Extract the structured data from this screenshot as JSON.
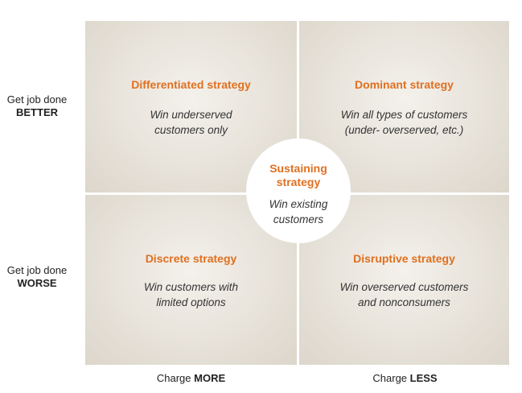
{
  "quadrants": {
    "top_left": {
      "title": "Differentiated strategy",
      "line1": "Win underserved",
      "line2": "customers only"
    },
    "top_right": {
      "title": "Dominant strategy",
      "line1": "Win all types of customers",
      "line2": "(under- overserved, etc.)"
    },
    "bottom_left": {
      "title": "Discrete strategy",
      "line1": "Win customers with",
      "line2": "limited options"
    },
    "bottom_right": {
      "title": "Disruptive strategy",
      "line1": "Win overserved customers",
      "line2": "and nonconsumers"
    }
  },
  "center": {
    "title_line1": "Sustaining",
    "title_line2": "strategy",
    "line1": "Win existing",
    "line2": "customers"
  },
  "y_axis": {
    "top_prefix": "Get job done",
    "top_emphasis": "BETTER",
    "bottom_prefix": "Get job done",
    "bottom_emphasis": "WORSE"
  },
  "x_axis": {
    "left_prefix": "Charge",
    "left_emphasis": "MORE",
    "right_prefix": "Charge",
    "right_emphasis": "LESS"
  },
  "colors": {
    "title_accent": "#e07020",
    "body_text": "#333333",
    "quadrant_fill": "#e6e1d8"
  }
}
